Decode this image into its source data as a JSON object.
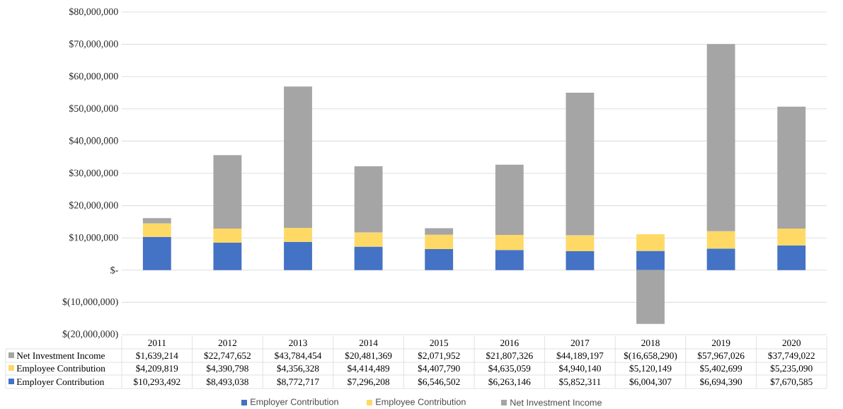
{
  "chart_data": {
    "type": "bar",
    "stacked": true,
    "categories": [
      "2011",
      "2012",
      "2013",
      "2014",
      "2015",
      "2016",
      "2017",
      "2018",
      "2019",
      "2020"
    ],
    "series": [
      {
        "name": "Employer Contribution",
        "color": "#4472c4",
        "values": [
          10293492,
          8493038,
          8772717,
          7296208,
          6546502,
          6263146,
          5852311,
          6004307,
          6694390,
          7670585
        ],
        "value_labels": [
          "$10,293,492",
          "$8,493,038",
          "$8,772,717",
          "$7,296,208",
          "$6,546,502",
          "$6,263,146",
          "$5,852,311",
          "$6,004,307",
          "$6,694,390",
          "$7,670,585"
        ]
      },
      {
        "name": "Employee Contribution",
        "color": "#ffd966",
        "values": [
          4209819,
          4390798,
          4356328,
          4414489,
          4407790,
          4635059,
          4940140,
          5120149,
          5402699,
          5235090
        ],
        "value_labels": [
          "$4,209,819",
          "$4,390,798",
          "$4,356,328",
          "$4,414,489",
          "$4,407,790",
          "$4,635,059",
          "$4,940,140",
          "$5,120,149",
          "$5,402,699",
          "$5,235,090"
        ]
      },
      {
        "name": "Net Investment Income",
        "color": "#a5a5a5",
        "values": [
          1639214,
          22747652,
          43784454,
          20481369,
          2071952,
          21807326,
          44189197,
          -16658290,
          57967026,
          37749022
        ],
        "value_labels": [
          "$1,639,214",
          "$22,747,652",
          "$43,784,454",
          "$20,481,369",
          "$2,071,952",
          "$21,807,326",
          "$44,189,197",
          "$(16,658,290)",
          "$57,967,026",
          "$37,749,022"
        ]
      }
    ],
    "ylim": [
      -20000000,
      80000000
    ],
    "yticks": [
      {
        "value": -20000000,
        "label": "$(20,000,000)"
      },
      {
        "value": -10000000,
        "label": "$(10,000,000)"
      },
      {
        "value": 0,
        "label": "$-"
      },
      {
        "value": 10000000,
        "label": "$10,000,000"
      },
      {
        "value": 20000000,
        "label": "$20,000,000"
      },
      {
        "value": 30000000,
        "label": "$30,000,000"
      },
      {
        "value": 40000000,
        "label": "$40,000,000"
      },
      {
        "value": 50000000,
        "label": "$50,000,000"
      },
      {
        "value": 60000000,
        "label": "$60,000,000"
      },
      {
        "value": 70000000,
        "label": "$70,000,000"
      },
      {
        "value": 80000000,
        "label": "$80,000,000"
      }
    ],
    "grid": "y",
    "legend": "bottom"
  }
}
